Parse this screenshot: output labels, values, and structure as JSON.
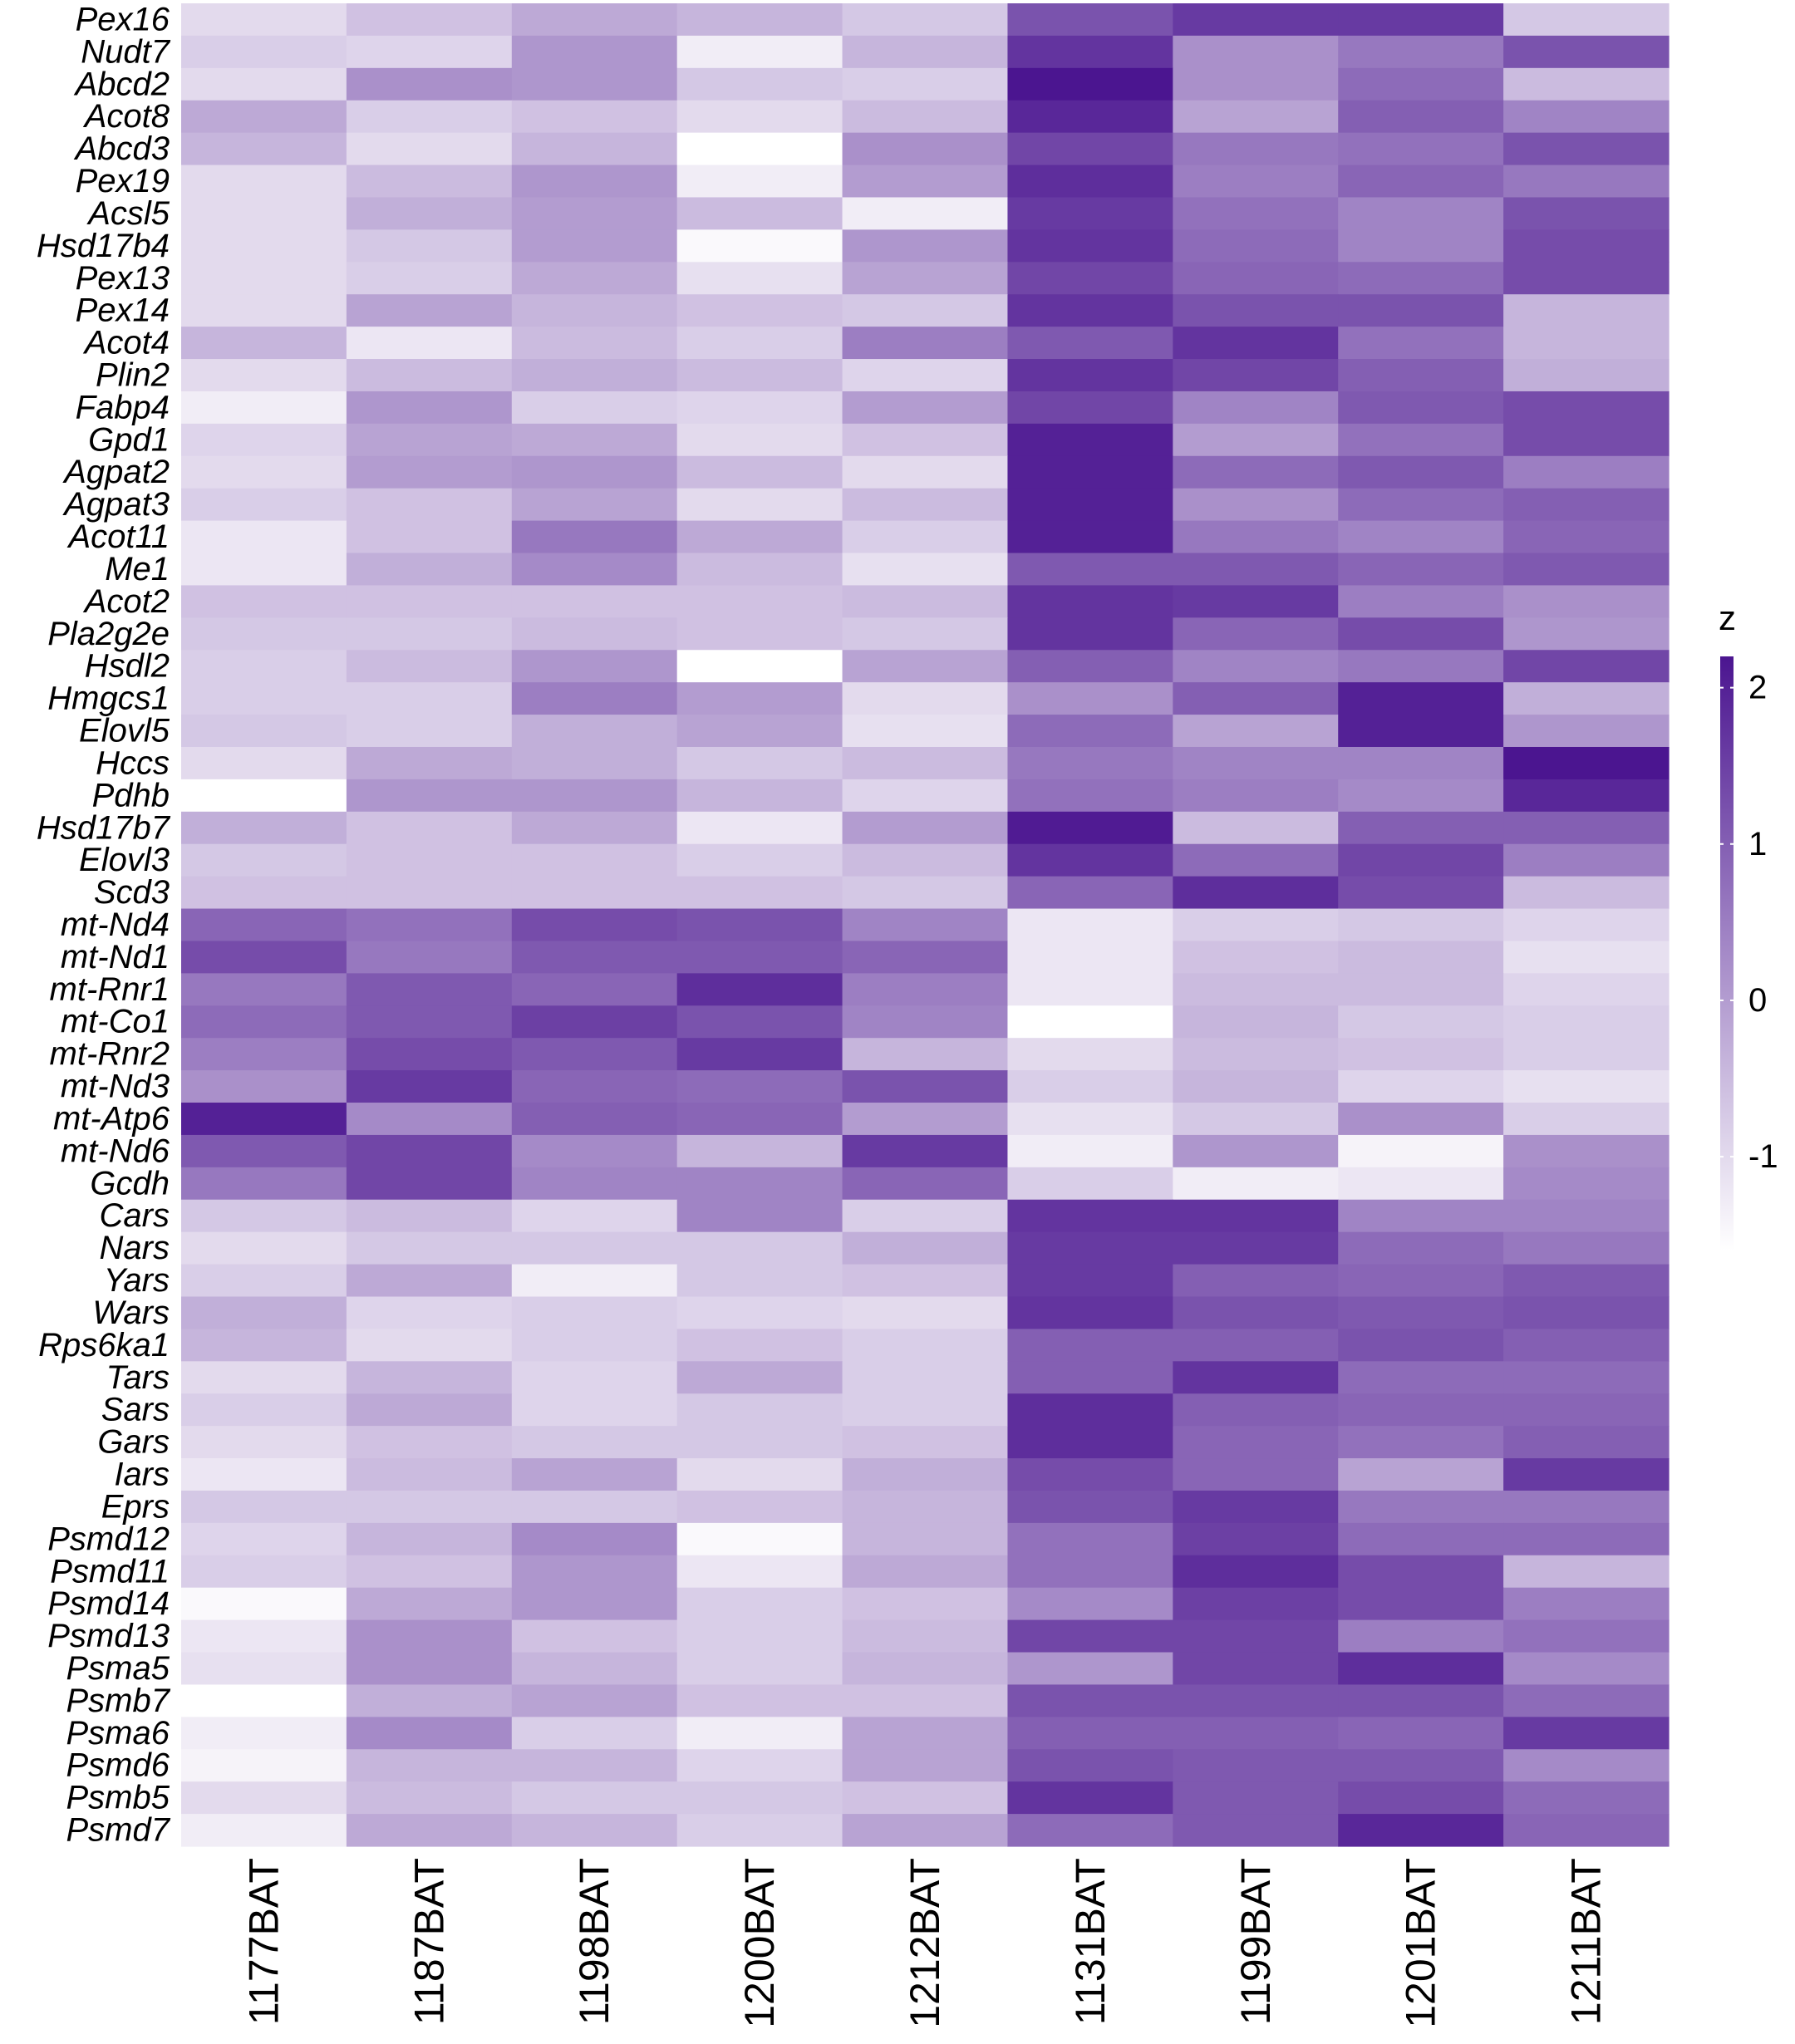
{
  "chart_data": {
    "type": "heatmap",
    "title": "",
    "xlabel": "",
    "ylabel": "",
    "columns": [
      "1177BAT",
      "1187BAT",
      "1198BAT",
      "1200BAT",
      "1212BAT",
      "1131BAT",
      "1199BAT",
      "1201BAT",
      "1211BAT"
    ],
    "rows": [
      "Pex16",
      "Nudt7",
      "Abcd2",
      "Acot8",
      "Abcd3",
      "Pex19",
      "Acsl5",
      "Hsd17b4",
      "Pex13",
      "Pex14",
      "Acot4",
      "Plin2",
      "Fabp4",
      "Gpd1",
      "Agpat2",
      "Agpat3",
      "Acot11",
      "Me1",
      "Acot2",
      "Pla2g2e",
      "Hsdl2",
      "Hmgcs1",
      "Elovl5",
      "Hccs",
      "Pdhb",
      "Hsd17b7",
      "Elovl3",
      "Scd3",
      "mt-Nd4",
      "mt-Nd1",
      "mt-Rnr1",
      "mt-Co1",
      "mt-Rnr2",
      "mt-Nd3",
      "mt-Atp6",
      "mt-Nd6",
      "Gcdh",
      "Cars",
      "Nars",
      "Yars",
      "Wars",
      "Rps6ka1",
      "Tars",
      "Sars",
      "Gars",
      "Iars",
      "Eprs",
      "Psmd12",
      "Psmd11",
      "Psmd14",
      "Psmd13",
      "Psma5",
      "Psmb7",
      "Psma6",
      "Psmd6",
      "Psmb5",
      "Psmd7"
    ],
    "values": [
      [
        -1.0,
        -0.6,
        -0.2,
        -0.4,
        -0.7,
        1.2,
        1.6,
        1.6,
        -0.7
      ],
      [
        -0.8,
        -0.9,
        0.1,
        -1.3,
        -0.4,
        1.7,
        0.2,
        0.6,
        1.2
      ],
      [
        -1.0,
        0.2,
        0.1,
        -0.7,
        -0.8,
        2.2,
        0.2,
        0.8,
        -0.5
      ],
      [
        -0.2,
        -0.8,
        -0.6,
        -1.0,
        -0.5,
        1.9,
        -0.1,
        1.0,
        0.4
      ],
      [
        -0.4,
        -1.0,
        -0.4,
        -1.6,
        0.2,
        1.4,
        0.6,
        0.7,
        1.2
      ],
      [
        -1.0,
        -0.5,
        0.1,
        -1.3,
        0.0,
        1.8,
        0.5,
        0.9,
        0.6
      ],
      [
        -1.0,
        -0.3,
        0.0,
        -0.5,
        -1.3,
        1.6,
        0.7,
        0.4,
        1.2
      ],
      [
        -1.0,
        -0.7,
        0.0,
        -1.5,
        0.1,
        1.7,
        0.8,
        0.4,
        1.3
      ],
      [
        -1.0,
        -0.8,
        -0.2,
        -1.1,
        -0.1,
        1.4,
        0.9,
        0.8,
        1.3
      ],
      [
        -1.0,
        -0.1,
        -0.4,
        -0.6,
        -0.7,
        1.7,
        1.2,
        1.2,
        -0.4
      ],
      [
        -0.4,
        -1.2,
        -0.5,
        -0.8,
        0.5,
        1.1,
        1.7,
        0.7,
        -0.4
      ],
      [
        -1.0,
        -0.5,
        -0.3,
        -0.5,
        -0.9,
        1.7,
        1.4,
        1.0,
        -0.3
      ],
      [
        -1.3,
        0.1,
        -0.8,
        -0.9,
        0.0,
        1.4,
        0.4,
        1.1,
        1.3
      ],
      [
        -0.9,
        -0.1,
        -0.2,
        -1.0,
        -0.6,
        2.0,
        0.0,
        0.7,
        1.3
      ],
      [
        -1.0,
        0.0,
        0.1,
        -0.5,
        -1.0,
        2.0,
        0.8,
        1.1,
        0.5
      ],
      [
        -0.8,
        -0.6,
        -0.1,
        -1.0,
        -0.5,
        2.0,
        0.2,
        0.8,
        1.0
      ],
      [
        -1.2,
        -0.6,
        0.6,
        -0.2,
        -0.8,
        2.0,
        0.6,
        0.4,
        0.9
      ],
      [
        -1.2,
        -0.3,
        0.3,
        -0.5,
        -1.1,
        1.1,
        1.1,
        0.9,
        1.1
      ],
      [
        -0.6,
        -0.6,
        -0.6,
        -0.6,
        -0.5,
        1.7,
        1.6,
        0.5,
        0.2
      ],
      [
        -0.7,
        -0.7,
        -0.5,
        -0.6,
        -0.7,
        1.7,
        0.9,
        1.3,
        0.1
      ],
      [
        -0.8,
        -0.5,
        0.1,
        -1.6,
        -0.1,
        1.0,
        0.4,
        0.6,
        1.4
      ],
      [
        -0.8,
        -0.8,
        0.5,
        0.0,
        -1.0,
        0.2,
        1.0,
        2.0,
        -0.3
      ],
      [
        -0.7,
        -0.8,
        -0.3,
        -0.1,
        -1.1,
        0.8,
        -0.1,
        2.0,
        0.1
      ],
      [
        -1.0,
        -0.2,
        -0.3,
        -0.7,
        -0.5,
        0.6,
        0.4,
        0.4,
        2.2
      ],
      [
        -1.6,
        0.1,
        0.1,
        -0.4,
        -0.9,
        0.7,
        0.5,
        0.3,
        1.9
      ],
      [
        -0.3,
        -0.6,
        -0.2,
        -1.2,
        0.0,
        2.1,
        -0.5,
        1.0,
        1.0
      ],
      [
        -0.7,
        -0.6,
        -0.6,
        -0.8,
        -0.5,
        1.7,
        0.8,
        1.4,
        0.5
      ],
      [
        -0.6,
        -0.6,
        -0.6,
        -0.6,
        -0.7,
        0.9,
        1.8,
        1.3,
        -0.5
      ],
      [
        0.9,
        0.7,
        1.3,
        1.2,
        0.4,
        -1.2,
        -0.8,
        -0.7,
        -0.9
      ],
      [
        1.3,
        0.6,
        1.1,
        1.1,
        0.9,
        -1.2,
        -0.6,
        -0.5,
        -1.1
      ],
      [
        0.6,
        1.1,
        0.9,
        1.8,
        0.5,
        -1.2,
        -0.5,
        -0.5,
        -0.9
      ],
      [
        0.8,
        1.1,
        1.5,
        1.2,
        0.4,
        -1.6,
        -0.4,
        -0.7,
        -0.8
      ],
      [
        0.5,
        1.3,
        1.1,
        1.6,
        -0.4,
        -1.0,
        -0.5,
        -0.6,
        -0.8
      ],
      [
        0.2,
        1.6,
        0.9,
        0.8,
        1.2,
        -0.8,
        -0.4,
        -0.9,
        -1.1
      ],
      [
        2.0,
        0.3,
        1.0,
        0.9,
        0.0,
        -1.1,
        -0.7,
        0.2,
        -0.8
      ],
      [
        1.1,
        1.4,
        0.3,
        -0.4,
        1.6,
        -1.3,
        0.1,
        -1.4,
        0.2
      ],
      [
        0.6,
        1.4,
        0.4,
        0.4,
        0.9,
        -0.8,
        -1.3,
        -1.2,
        0.3
      ],
      [
        -0.7,
        -0.5,
        -0.9,
        0.4,
        -0.8,
        1.7,
        1.7,
        0.4,
        0.4
      ],
      [
        -1.0,
        -0.7,
        -0.7,
        -0.7,
        -0.3,
        1.6,
        1.6,
        0.8,
        0.6
      ],
      [
        -0.8,
        -0.2,
        -1.3,
        -0.7,
        -0.6,
        1.6,
        1.0,
        0.9,
        1.1
      ],
      [
        -0.3,
        -0.9,
        -0.8,
        -0.9,
        -1.0,
        1.7,
        1.2,
        1.1,
        1.2
      ],
      [
        -0.4,
        -1.0,
        -0.8,
        -0.6,
        -0.8,
        1.0,
        1.0,
        1.2,
        1.0
      ],
      [
        -1.0,
        -0.4,
        -0.9,
        -0.2,
        -0.8,
        1.0,
        1.7,
        0.8,
        0.8
      ],
      [
        -0.8,
        -0.2,
        -0.9,
        -0.7,
        -0.8,
        1.8,
        1.0,
        0.9,
        0.9
      ],
      [
        -1.0,
        -0.6,
        -0.7,
        -0.7,
        -0.6,
        1.8,
        0.9,
        0.7,
        1.0
      ],
      [
        -1.2,
        -0.5,
        -0.1,
        -1.0,
        -0.3,
        1.3,
        0.9,
        -0.1,
        1.6
      ],
      [
        -0.7,
        -0.7,
        -0.7,
        -0.6,
        -0.4,
        1.2,
        1.6,
        0.6,
        0.6
      ],
      [
        -0.9,
        -0.4,
        0.3,
        -1.5,
        -0.4,
        0.7,
        1.5,
        0.8,
        0.8
      ],
      [
        -0.8,
        -0.6,
        0.1,
        -1.2,
        -0.2,
        0.7,
        1.8,
        1.3,
        -0.4
      ],
      [
        -1.5,
        -0.2,
        0.1,
        -0.8,
        -0.6,
        0.3,
        1.5,
        1.3,
        0.5
      ],
      [
        -1.2,
        0.2,
        -0.6,
        -0.8,
        -0.5,
        1.4,
        1.4,
        0.5,
        0.7
      ],
      [
        -1.1,
        0.2,
        -0.4,
        -0.8,
        -0.4,
        0.1,
        1.4,
        1.8,
        0.3
      ],
      [
        -1.6,
        -0.3,
        -0.1,
        -0.6,
        -0.6,
        1.2,
        1.2,
        1.2,
        0.8
      ],
      [
        -1.3,
        0.3,
        -0.8,
        -1.3,
        -0.1,
        1.0,
        1.0,
        0.9,
        1.6
      ],
      [
        -1.4,
        -0.4,
        -0.4,
        -0.9,
        -0.1,
        1.2,
        1.1,
        1.1,
        0.3
      ],
      [
        -1.0,
        -0.5,
        -0.7,
        -0.7,
        -0.6,
        1.7,
        1.1,
        1.3,
        0.8
      ],
      [
        -1.3,
        -0.2,
        -0.4,
        -0.8,
        -0.1,
        0.8,
        1.1,
        1.9,
        0.9
      ]
    ],
    "scale": {
      "label": "z",
      "min": -1.6,
      "max": 2.2,
      "low_color": "#ffffff",
      "high_color": "#4b1590",
      "ticks": [
        -1,
        0,
        1,
        2
      ],
      "tick_labels": [
        "-1",
        "0",
        "1",
        "2"
      ]
    },
    "legend_position": "right",
    "grid": false
  }
}
